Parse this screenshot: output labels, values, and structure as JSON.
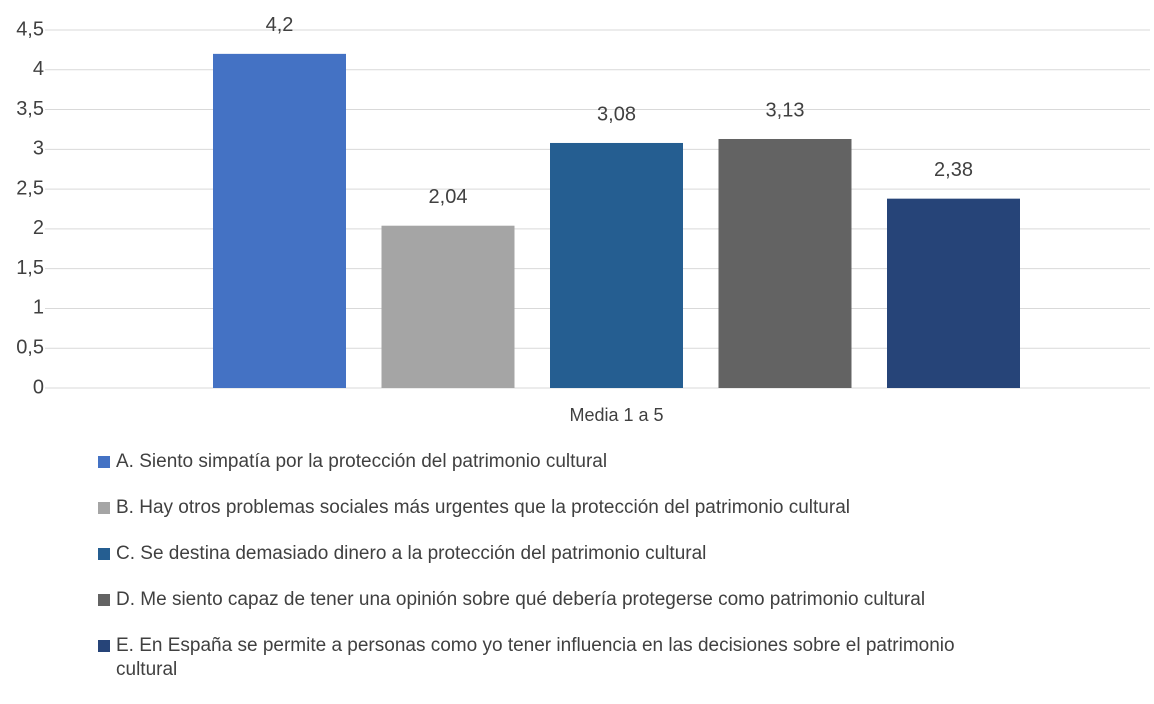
{
  "chart_data": {
    "type": "bar",
    "categories": [
      "Media 1 a 5"
    ],
    "series": [
      {
        "name": "A. Siento simpatía por la protección del patrimonio cultural",
        "color": "#4472c4",
        "values": [
          4.2
        ],
        "value_labels": [
          "4,2"
        ]
      },
      {
        "name": "B. Hay otros problemas sociales más urgentes que la protección del patrimonio cultural",
        "color": "#a5a5a5",
        "values": [
          2.04
        ],
        "value_labels": [
          "2,04"
        ]
      },
      {
        "name": "C. Se destina demasiado dinero a la protección del patrimonio cultural",
        "color": "#255e91",
        "values": [
          3.08
        ],
        "value_labels": [
          "3,08"
        ]
      },
      {
        "name": "D. Me siento capaz de tener una opinión sobre qué debería protegerse como patrimonio cultural",
        "color": "#636363",
        "values": [
          3.13
        ],
        "value_labels": [
          "3,13"
        ]
      },
      {
        "name": "E. En España se permite a personas como yo tener influencia en las decisiones sobre el patrimonio cultural",
        "color": "#264478",
        "values": [
          2.38
        ],
        "value_labels": [
          "2,38"
        ]
      }
    ],
    "ylim": [
      0,
      4.5
    ],
    "yticks": [
      0,
      {
        "value": 0.5,
        "label": "0,5"
      },
      1,
      {
        "value": 1.5,
        "label": "1,5"
      },
      2,
      {
        "value": 2.5,
        "label": "2,5"
      },
      3,
      {
        "value": 3.5,
        "label": "3,5"
      },
      4,
      {
        "value": 4.5,
        "label": "4,5"
      }
    ],
    "grid": true,
    "legend": "bottom"
  }
}
